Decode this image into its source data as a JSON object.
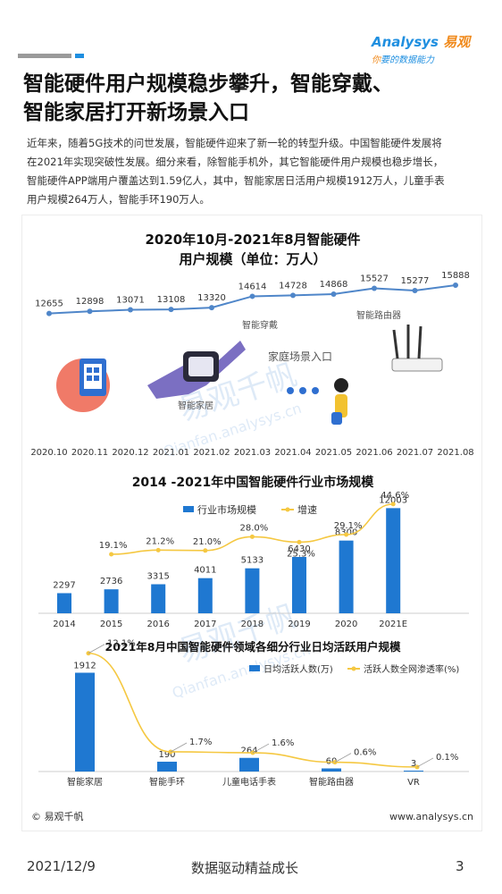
{
  "header": {
    "logo_brand_en": "Analysys",
    "logo_brand_cn": "易观",
    "logo_slogan_a": "你",
    "logo_slogan_b": "要的数据能力",
    "colors": {
      "blue": "#1f8fe0",
      "orange": "#f08a1c"
    }
  },
  "title_lines": [
    "智能硬件用户规模稳步攀升，智能穿戴、",
    "智能家居打开新场景入口"
  ],
  "body_lines": [
    "近年来，随着5G技术的问世发展，智能硬件迎来了新一轮的转型升级。中国智能硬件发展将",
    "在2021年实现突破性发展。细分来看，除智能手机外，其它智能硬件用户规模也稳步增长，",
    "智能硬件APP端用户覆盖达到1.59亿人，其中，智能家居日活用户规模1912万人，儿童手表",
    "用户规模264万人，智能手环190万人。"
  ],
  "chart_data": [
    {
      "type": "line",
      "title_lines": [
        "2020年10月-2021年8月智能硬件",
        "用户规模（单位：万人）"
      ],
      "categories": [
        "2020.10",
        "2020.11",
        "2020.12",
        "2021.01",
        "2021.02",
        "2021.03",
        "2021.04",
        "2021.05",
        "2021.06",
        "2021.07",
        "2021.08"
      ],
      "values": [
        12655,
        12898,
        13071,
        13108,
        13320,
        14614,
        14728,
        14868,
        15527,
        15277,
        15888
      ],
      "annotations": [
        "智能穿戴",
        "智能路由器",
        "家庭场景入口",
        "智能家居"
      ],
      "color": "#4f86c9"
    },
    {
      "type": "bar",
      "title": "2014 -2021年中国智能硬件行业市场规模",
      "legend": [
        "行业市场规模",
        "增速"
      ],
      "categories": [
        "2014",
        "2015",
        "2016",
        "2017",
        "2018",
        "2019",
        "2020",
        "2021E"
      ],
      "series": [
        {
          "name": "行业市场规模",
          "values": [
            2297,
            2736,
            3315,
            4011,
            5133,
            6430,
            8300,
            12003
          ],
          "color": "#1f78d1"
        },
        {
          "name": "增速",
          "values": [
            null,
            19.1,
            21.2,
            21.0,
            28.0,
            25.3,
            29.1,
            44.6
          ],
          "labels": [
            "",
            "19.1%",
            "21.2%",
            "21.0%",
            "28.0%",
            "25.3%",
            "29.1%",
            "44.6%"
          ],
          "color": "#f5c842"
        }
      ]
    },
    {
      "type": "bar",
      "title": "2021年8月中国智能硬件领域各细分行业日均活跃用户规模",
      "legend": [
        "日均活跃人数(万)",
        "活跃人数全网渗透率(%)"
      ],
      "categories": [
        "智能家居",
        "智能手环",
        "儿童电话手表",
        "智能路由器",
        "VR"
      ],
      "series": [
        {
          "name": "日均活跃人数(万)",
          "values": [
            1912,
            190,
            264,
            60,
            3
          ],
          "color": "#1f78d1"
        },
        {
          "name": "活跃人数全网渗透率(%)",
          "values": [
            12.1,
            1.7,
            1.6,
            0.6,
            0.1
          ],
          "labels": [
            "12.1%",
            "1.7%",
            "1.6%",
            "0.6%",
            "0.1%"
          ],
          "color": "#f5c842"
        }
      ]
    }
  ],
  "panel": {
    "watermark_cn": "易观千帆",
    "watermark_en": "Qianfan.analysys.cn",
    "copyright": "© 易观千帆",
    "site": "www.analysys.cn"
  },
  "footer": {
    "date": "2021/12/9",
    "slogan": "数据驱动精益成长",
    "page": "3"
  }
}
